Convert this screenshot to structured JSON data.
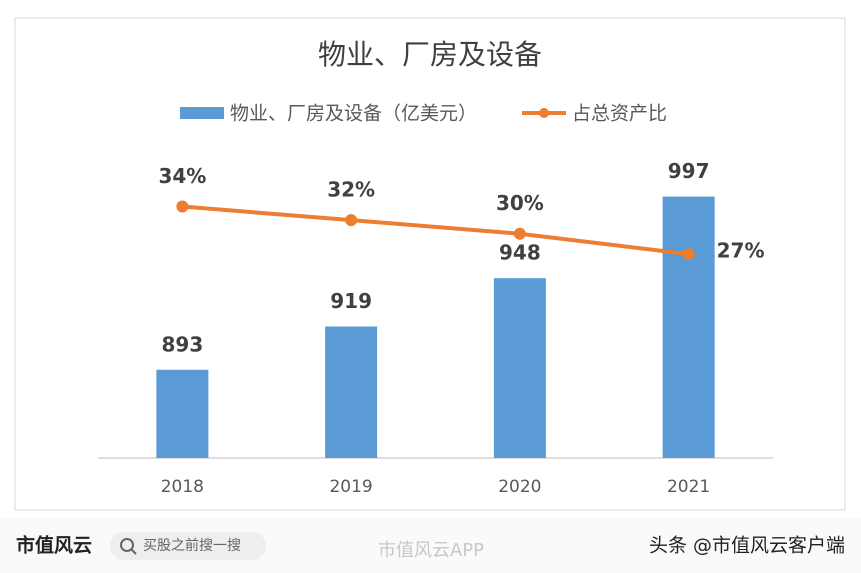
{
  "chart_data": {
    "type": "bar-line",
    "title": "物业、厂房及设备",
    "categories": [
      "2018",
      "2019",
      "2020",
      "2021"
    ],
    "series": [
      {
        "name": "物业、厂房及设备（亿美元）",
        "type": "bar",
        "color": "#5b9bd5",
        "values": [
          893,
          919,
          948,
          997
        ]
      },
      {
        "name": "占总资产比",
        "type": "line",
        "axis": "y2",
        "color": "#ed7d31",
        "values": [
          34,
          32,
          30,
          27
        ],
        "value_labels": [
          "34%",
          "32%",
          "30%",
          "27%"
        ]
      }
    ],
    "ylim": [
      840,
      1040
    ],
    "y2lim": [
      -3,
      46
    ],
    "legend": "top"
  },
  "footer": {
    "brand": "市值风云",
    "search": "买股之前搜一搜",
    "app": "市值风云APP",
    "source": "头条 @市值风云客户端"
  }
}
